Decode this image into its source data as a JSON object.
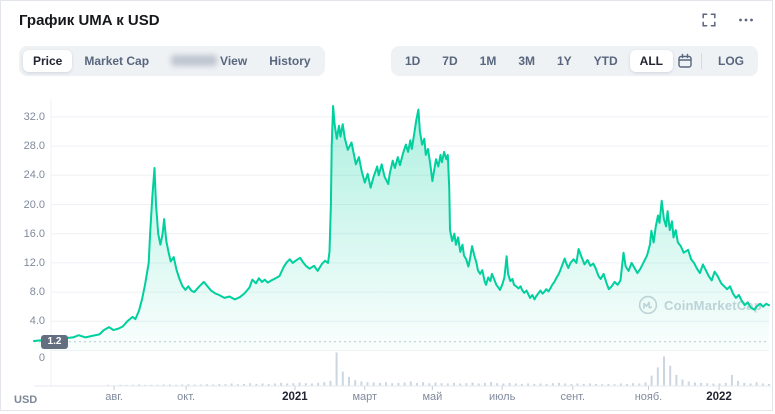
{
  "header": {
    "title": "График UMA к USD"
  },
  "toolbar": {
    "tabs": [
      {
        "label": "Price",
        "active": true
      },
      {
        "label": "Market Cap",
        "active": false
      },
      {
        "label": "View",
        "active": false,
        "redacted_prefix": true
      },
      {
        "label": "History",
        "active": false
      }
    ],
    "ranges": [
      {
        "label": "1D",
        "active": false
      },
      {
        "label": "7D",
        "active": false
      },
      {
        "label": "1M",
        "active": false
      },
      {
        "label": "3M",
        "active": false
      },
      {
        "label": "1Y",
        "active": false
      },
      {
        "label": "YTD",
        "active": false
      },
      {
        "label": "ALL",
        "active": true
      }
    ],
    "log_label": "LOG"
  },
  "watermark": {
    "text": "CoinMarketCap"
  },
  "colors": {
    "line": "#00cf9e",
    "fill_top": "rgba(0,207,158,0.32)",
    "fill_bottom": "rgba(0,207,158,0.02)",
    "grid": "#eef1f5",
    "axis": "#e6eaef",
    "tick": "#c5cdd6",
    "dotted": "#c0c7d2",
    "volume": "#ccd6e1",
    "badge_bg": "#636e80"
  },
  "chart_data": {
    "type": "area",
    "title": "График UMA к USD",
    "series_name": "UMA price (USD)",
    "xlabel": "",
    "ylabel": "USD",
    "ylim": [
      0,
      34
    ],
    "grid": true,
    "y_ticks": [
      {
        "label": "32.0",
        "value": 32
      },
      {
        "label": "28.0",
        "value": 28
      },
      {
        "label": "24.0",
        "value": 24
      },
      {
        "label": "20.0",
        "value": 20
      },
      {
        "label": "16.0",
        "value": 16
      },
      {
        "label": "12.0",
        "value": 12
      },
      {
        "label": "8.0",
        "value": 8
      },
      {
        "label": "4.0",
        "value": 4
      },
      {
        "label": "0",
        "value": 0
      }
    ],
    "x_ticks": [
      {
        "label": "авг.",
        "pos": 10.9,
        "bold": false
      },
      {
        "label": "окт.",
        "pos": 20.7,
        "bold": false
      },
      {
        "label": "2021",
        "pos": 35.5,
        "bold": true
      },
      {
        "label": "март",
        "pos": 45.0,
        "bold": false
      },
      {
        "label": "май",
        "pos": 54.2,
        "bold": false
      },
      {
        "label": "июль",
        "pos": 63.7,
        "bold": false
      },
      {
        "label": "сент.",
        "pos": 73.3,
        "bold": false
      },
      {
        "label": "нояб.",
        "pos": 83.6,
        "bold": false
      },
      {
        "label": "2022",
        "pos": 93.2,
        "bold": true
      }
    ],
    "baseline_marker": {
      "label": "1.2",
      "value": 1.2
    },
    "price_series": {
      "name": "UMA/USD",
      "points": [
        [
          0.0,
          1.3
        ],
        [
          1.0,
          1.4
        ],
        [
          2.0,
          1.5
        ],
        [
          3.1,
          1.6
        ],
        [
          4.2,
          1.7
        ],
        [
          5.3,
          1.8
        ],
        [
          6.1,
          2.1
        ],
        [
          7.0,
          1.8
        ],
        [
          7.9,
          2.0
        ],
        [
          8.9,
          2.2
        ],
        [
          9.5,
          2.8
        ],
        [
          10.2,
          3.2
        ],
        [
          10.8,
          2.8
        ],
        [
          11.5,
          3.0
        ],
        [
          12.1,
          3.3
        ],
        [
          12.7,
          4.0
        ],
        [
          13.4,
          4.6
        ],
        [
          13.8,
          4.3
        ],
        [
          14.3,
          5.5
        ],
        [
          14.7,
          7.0
        ],
        [
          15.1,
          9.0
        ],
        [
          15.6,
          12.0
        ],
        [
          15.8,
          16.0
        ],
        [
          16.1,
          21.0
        ],
        [
          16.4,
          25.0
        ],
        [
          16.6,
          20.0
        ],
        [
          16.9,
          16.0
        ],
        [
          17.2,
          14.5
        ],
        [
          17.5,
          16.0
        ],
        [
          17.7,
          18.0
        ],
        [
          18.0,
          15.0
        ],
        [
          18.3,
          13.5
        ],
        [
          18.6,
          12.2
        ],
        [
          19.0,
          12.8
        ],
        [
          19.4,
          11.0
        ],
        [
          19.8,
          9.8
        ],
        [
          20.2,
          8.8
        ],
        [
          20.6,
          8.3
        ],
        [
          21.0,
          8.8
        ],
        [
          21.4,
          8.2
        ],
        [
          21.8,
          8.0
        ],
        [
          22.5,
          8.8
        ],
        [
          23.1,
          9.4
        ],
        [
          23.6,
          8.8
        ],
        [
          24.1,
          8.2
        ],
        [
          24.7,
          7.8
        ],
        [
          25.2,
          7.6
        ],
        [
          25.9,
          7.2
        ],
        [
          26.6,
          7.4
        ],
        [
          27.3,
          7.0
        ],
        [
          28.0,
          7.3
        ],
        [
          28.6,
          7.8
        ],
        [
          29.3,
          8.6
        ],
        [
          29.7,
          9.7
        ],
        [
          30.2,
          9.2
        ],
        [
          30.6,
          9.9
        ],
        [
          31.0,
          9.4
        ],
        [
          31.4,
          9.7
        ],
        [
          31.8,
          9.3
        ],
        [
          32.3,
          9.6
        ],
        [
          32.9,
          9.9
        ],
        [
          33.4,
          10.2
        ],
        [
          34.0,
          11.5
        ],
        [
          34.4,
          12.1
        ],
        [
          34.8,
          12.5
        ],
        [
          35.2,
          12.0
        ],
        [
          35.6,
          12.3
        ],
        [
          36.2,
          12.7
        ],
        [
          36.6,
          12.1
        ],
        [
          37.0,
          11.6
        ],
        [
          37.5,
          11.2
        ],
        [
          38.1,
          11.6
        ],
        [
          38.6,
          10.9
        ],
        [
          39.2,
          11.9
        ],
        [
          39.6,
          12.3
        ],
        [
          40.0,
          12.0
        ],
        [
          40.2,
          13.5
        ],
        [
          40.4,
          20.0
        ],
        [
          40.5,
          28.0
        ],
        [
          40.7,
          33.5
        ],
        [
          40.9,
          31.0
        ],
        [
          41.2,
          29.0
        ],
        [
          41.5,
          30.8
        ],
        [
          41.7,
          29.3
        ],
        [
          42.0,
          31.0
        ],
        [
          42.3,
          29.0
        ],
        [
          42.7,
          27.5
        ],
        [
          43.2,
          28.5
        ],
        [
          43.8,
          25.5
        ],
        [
          44.2,
          26.5
        ],
        [
          44.6,
          24.5
        ],
        [
          45.0,
          23.0
        ],
        [
          45.4,
          24.2
        ],
        [
          45.8,
          22.3
        ],
        [
          46.2,
          23.8
        ],
        [
          46.7,
          25.2
        ],
        [
          46.9,
          24.0
        ],
        [
          47.3,
          25.5
        ],
        [
          47.7,
          23.8
        ],
        [
          48.2,
          22.8
        ],
        [
          48.4,
          24.2
        ],
        [
          48.8,
          26.0
        ],
        [
          49.1,
          25.0
        ],
        [
          49.5,
          26.5
        ],
        [
          49.8,
          25.4
        ],
        [
          50.2,
          27.0
        ],
        [
          50.6,
          28.2
        ],
        [
          50.9,
          27.2
        ],
        [
          51.2,
          28.8
        ],
        [
          51.4,
          27.6
        ],
        [
          51.7,
          29.5
        ],
        [
          52.0,
          31.5
        ],
        [
          52.3,
          33.0
        ],
        [
          52.5,
          30.0
        ],
        [
          52.8,
          28.2
        ],
        [
          53.1,
          29.0
        ],
        [
          53.3,
          26.8
        ],
        [
          53.6,
          27.6
        ],
        [
          53.9,
          25.6
        ],
        [
          54.2,
          23.2
        ],
        [
          54.4,
          24.4
        ],
        [
          54.7,
          26.2
        ],
        [
          55.0,
          25.2
        ],
        [
          55.3,
          26.8
        ],
        [
          55.5,
          25.8
        ],
        [
          55.8,
          27.2
        ],
        [
          56.1,
          26.2
        ],
        [
          56.3,
          26.8
        ],
        [
          56.5,
          22.0
        ],
        [
          56.6,
          16.5
        ],
        [
          56.9,
          15.0
        ],
        [
          57.2,
          16.0
        ],
        [
          57.4,
          14.5
        ],
        [
          57.7,
          15.5
        ],
        [
          58.0,
          13.5
        ],
        [
          58.3,
          14.5
        ],
        [
          58.5,
          13.0
        ],
        [
          58.8,
          12.5
        ],
        [
          59.1,
          11.5
        ],
        [
          59.3,
          12.5
        ],
        [
          59.6,
          14.3
        ],
        [
          59.9,
          13.0
        ],
        [
          60.2,
          12.0
        ],
        [
          60.4,
          11.0
        ],
        [
          60.7,
          10.5
        ],
        [
          61.0,
          11.0
        ],
        [
          61.3,
          9.5
        ],
        [
          61.5,
          9.0
        ],
        [
          61.8,
          10.0
        ],
        [
          62.1,
          9.5
        ],
        [
          62.3,
          10.5
        ],
        [
          62.6,
          9.8
        ],
        [
          62.9,
          9.0
        ],
        [
          63.2,
          8.6
        ],
        [
          63.4,
          8.3
        ],
        [
          63.7,
          9.0
        ],
        [
          64.0,
          10.0
        ],
        [
          64.3,
          12.9
        ],
        [
          64.5,
          10.5
        ],
        [
          64.8,
          9.5
        ],
        [
          65.1,
          9.8
        ],
        [
          65.3,
          9.0
        ],
        [
          65.6,
          8.8
        ],
        [
          65.9,
          8.5
        ],
        [
          66.2,
          8.8
        ],
        [
          66.4,
          8.3
        ],
        [
          66.7,
          7.9
        ],
        [
          67.0,
          8.2
        ],
        [
          67.3,
          7.6
        ],
        [
          67.5,
          7.2
        ],
        [
          67.8,
          7.6
        ],
        [
          68.1,
          7.0
        ],
        [
          68.3,
          7.4
        ],
        [
          68.6,
          7.8
        ],
        [
          68.9,
          8.2
        ],
        [
          69.2,
          7.8
        ],
        [
          69.4,
          8.0
        ],
        [
          69.7,
          8.4
        ],
        [
          70.0,
          8.1
        ],
        [
          70.3,
          8.6
        ],
        [
          70.5,
          9.0
        ],
        [
          70.8,
          9.4
        ],
        [
          71.1,
          10.0
        ],
        [
          71.4,
          10.5
        ],
        [
          71.6,
          11.0
        ],
        [
          71.9,
          11.8
        ],
        [
          72.2,
          12.6
        ],
        [
          72.4,
          12.0
        ],
        [
          72.7,
          11.3
        ],
        [
          73.0,
          12.0
        ],
        [
          73.4,
          12.5
        ],
        [
          73.8,
          12.0
        ],
        [
          74.1,
          13.9
        ],
        [
          74.5,
          12.8
        ],
        [
          74.9,
          11.8
        ],
        [
          75.3,
          12.4
        ],
        [
          75.7,
          11.6
        ],
        [
          76.1,
          11.9
        ],
        [
          76.4,
          11.3
        ],
        [
          76.8,
          10.2
        ],
        [
          77.1,
          9.8
        ],
        [
          77.5,
          10.5
        ],
        [
          77.9,
          9.2
        ],
        [
          78.2,
          8.4
        ],
        [
          78.6,
          8.8
        ],
        [
          79.0,
          9.4
        ],
        [
          79.4,
          9.0
        ],
        [
          79.8,
          9.6
        ],
        [
          80.2,
          13.4
        ],
        [
          80.5,
          11.5
        ],
        [
          80.9,
          10.9
        ],
        [
          81.3,
          12.0
        ],
        [
          81.7,
          11.3
        ],
        [
          82.1,
          10.6
        ],
        [
          82.5,
          11.2
        ],
        [
          82.9,
          12.0
        ],
        [
          83.4,
          13.0
        ],
        [
          83.8,
          14.5
        ],
        [
          84.0,
          16.4
        ],
        [
          84.3,
          14.8
        ],
        [
          84.6,
          17.0
        ],
        [
          84.9,
          18.5
        ],
        [
          85.1,
          17.5
        ],
        [
          85.4,
          20.5
        ],
        [
          85.7,
          18.0
        ],
        [
          86.0,
          17.0
        ],
        [
          86.2,
          19.1
        ],
        [
          86.5,
          16.5
        ],
        [
          86.8,
          17.7
        ],
        [
          87.0,
          15.5
        ],
        [
          87.3,
          16.5
        ],
        [
          87.6,
          14.8
        ],
        [
          88.0,
          14.3
        ],
        [
          88.4,
          13.4
        ],
        [
          89.0,
          13.8
        ],
        [
          89.4,
          12.5
        ],
        [
          89.8,
          12.0
        ],
        [
          90.2,
          11.2
        ],
        [
          90.6,
          10.6
        ],
        [
          91.0,
          11.8
        ],
        [
          91.4,
          11.0
        ],
        [
          91.8,
          10.2
        ],
        [
          92.2,
          9.6
        ],
        [
          92.6,
          10.8
        ],
        [
          93.0,
          10.2
        ],
        [
          93.5,
          9.2
        ],
        [
          93.9,
          8.8
        ],
        [
          94.3,
          8.4
        ],
        [
          94.7,
          8.8
        ],
        [
          95.1,
          7.8
        ],
        [
          95.5,
          7.2
        ],
        [
          95.9,
          7.6
        ],
        [
          96.3,
          6.8
        ],
        [
          96.7,
          6.2
        ],
        [
          97.1,
          6.6
        ],
        [
          97.5,
          5.9
        ],
        [
          98.0,
          5.6
        ],
        [
          98.4,
          6.1
        ],
        [
          98.8,
          6.4
        ],
        [
          99.2,
          6.0
        ],
        [
          99.6,
          6.4
        ],
        [
          100.0,
          6.2
        ]
      ]
    },
    "volume_series": [
      1,
      1,
      1,
      1,
      1,
      1,
      1,
      1,
      1,
      1,
      1,
      1,
      2,
      1,
      2,
      2,
      2,
      3,
      2,
      2,
      2,
      3,
      3,
      2,
      3,
      4,
      3,
      3,
      4,
      3,
      5,
      4,
      6,
      4,
      5,
      7,
      5,
      6,
      5,
      6,
      8,
      6,
      7,
      9,
      7,
      6,
      8,
      10,
      14,
      100,
      42,
      26,
      16,
      12,
      10,
      9,
      8,
      10,
      7,
      8,
      9,
      12,
      8,
      10,
      7,
      9,
      7,
      6,
      8,
      6,
      7,
      9,
      6,
      8,
      11,
      7,
      6,
      8,
      6,
      5,
      6,
      5,
      6,
      5,
      7,
      8,
      6,
      5,
      6,
      5,
      6,
      5,
      4,
      5,
      4,
      6,
      5,
      7,
      6,
      9,
      30,
      55,
      88,
      60,
      32,
      18,
      12,
      9,
      8,
      7,
      6,
      6,
      8,
      32,
      14,
      8,
      6,
      10,
      6,
      5
    ]
  }
}
